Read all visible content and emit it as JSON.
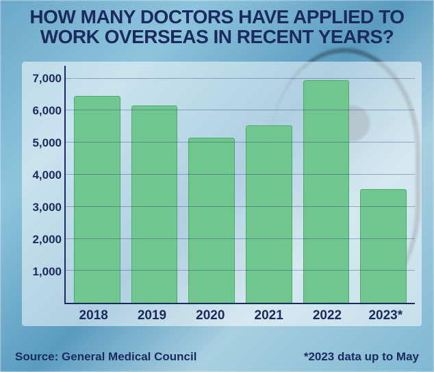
{
  "title_line1": "HOW MANY DOCTORS HAVE APPLIED TO",
  "title_line2": "WORK OVERSEAS IN RECENT YEARS?",
  "chart": {
    "type": "bar",
    "categories": [
      "2018",
      "2019",
      "2020",
      "2021",
      "2022",
      "2023*"
    ],
    "values": [
      6450,
      6150,
      5150,
      5550,
      6950,
      3550
    ],
    "bar_color": "#6fc78d",
    "bar_border": "#4fa86e",
    "ylim": [
      0,
      7400
    ],
    "yticks": [
      1000,
      2000,
      3000,
      4000,
      5000,
      6000,
      7000
    ],
    "ytick_labels": [
      "1,000",
      "2,000",
      "3,000",
      "4,000",
      "5,000",
      "6,000",
      "7,000"
    ],
    "axis_color": "#1a2a5e",
    "grid_color": "rgba(26,42,94,0.35)",
    "panel_bg": "rgba(255,255,255,0.52)",
    "tick_fontsize": 17,
    "xlabel_fontsize": 19,
    "title_fontsize": 28,
    "title_color": "#1a2a5e",
    "bar_width": 0.78
  },
  "source_label": "Source: General Medical Council",
  "footnote": "*2023 data up to May",
  "footer_fontsize": 17
}
